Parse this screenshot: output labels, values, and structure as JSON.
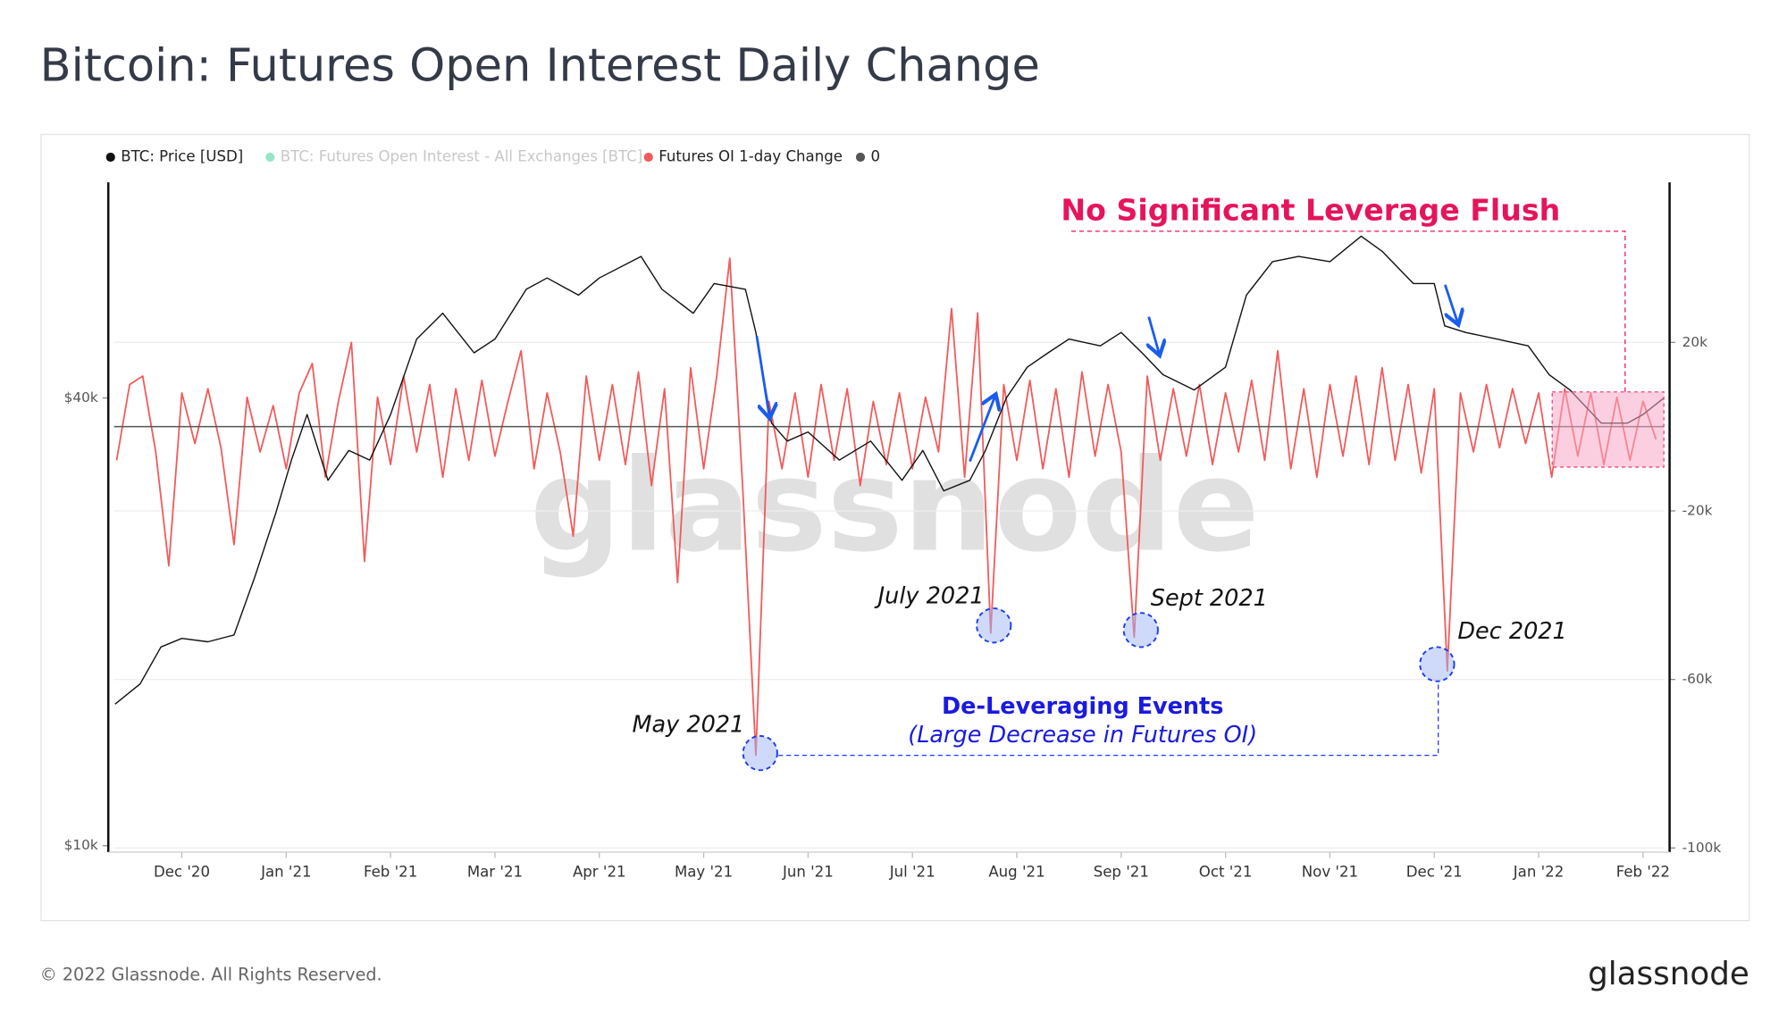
{
  "chart_data": {
    "type": "line",
    "title": "Bitcoin: Futures Open Interest Daily Change",
    "watermark": "glassnode",
    "copyright": "© 2022 Glassnode. All Rights Reserved.",
    "logo": "glassnode",
    "annotations": [
      "No Significant Leverage Flush",
      "De-Leveraging Events",
      "(Large Decrease in Futures OI)",
      "May 2021",
      "July 2021",
      "Sept 2021",
      "Dec 2021"
    ],
    "xlim": [
      -0.65,
      14.2
    ],
    "xticks": [
      {
        "value": 0,
        "label": "Dec '20"
      },
      {
        "value": 1,
        "label": "Jan '21"
      },
      {
        "value": 2,
        "label": "Feb '21"
      },
      {
        "value": 3,
        "label": "Mar '21"
      },
      {
        "value": 4,
        "label": "Apr '21"
      },
      {
        "value": 5,
        "label": "May '21"
      },
      {
        "value": 6,
        "label": "Jun '21"
      },
      {
        "value": 7,
        "label": "Jul '21"
      },
      {
        "value": 8,
        "label": "Aug '21"
      },
      {
        "value": 9,
        "label": "Sep '21"
      },
      {
        "value": 10,
        "label": "Oct '21"
      },
      {
        "value": 11,
        "label": "Nov '21"
      },
      {
        "value": 12,
        "label": "Dec '21"
      },
      {
        "value": 13,
        "label": "Jan '22"
      },
      {
        "value": 14,
        "label": "Feb '22"
      }
    ],
    "ylim": [
      9800,
      78000
    ],
    "ylog": true,
    "yticks": [
      {
        "value": 10000,
        "label": "$10k"
      },
      {
        "value": 40000,
        "label": "$40k"
      }
    ],
    "y2lim": [
      -101000,
      58000
    ],
    "y2ticks": [
      {
        "value": 20000,
        "label": "20k"
      },
      {
        "value": -20000,
        "label": "-20k"
      },
      {
        "value": -60000,
        "label": "-60k"
      },
      {
        "value": -100000,
        "label": "-100k"
      }
    ],
    "grid": true,
    "series": [
      {
        "name": "BTC: Price [USD]",
        "color": "#111111",
        "x": [
          -0.64,
          -0.4,
          -0.2,
          0,
          0.25,
          0.5,
          0.7,
          0.9,
          1.05,
          1.2,
          1.4,
          1.6,
          1.8,
          2.0,
          2.25,
          2.5,
          2.8,
          3.0,
          3.3,
          3.5,
          3.8,
          4.0,
          4.4,
          4.6,
          4.9,
          5.1,
          5.4,
          5.5,
          5.65,
          5.8,
          6.0,
          6.3,
          6.6,
          6.9,
          7.1,
          7.3,
          7.55,
          7.7,
          7.9,
          8.1,
          8.3,
          8.5,
          8.8,
          9.0,
          9.2,
          9.4,
          9.7,
          10.0,
          10.2,
          10.45,
          10.7,
          11.0,
          11.3,
          11.5,
          11.8,
          12.0,
          12.1,
          12.3,
          12.6,
          12.9,
          13.1,
          13.3,
          13.6,
          13.85,
          14.0,
          14.2
        ],
        "values": [
          15500,
          16500,
          18500,
          19000,
          18800,
          19200,
          23000,
          28000,
          33000,
          38000,
          31000,
          34000,
          33000,
          38000,
          48000,
          52000,
          46000,
          48000,
          56000,
          58000,
          55000,
          58000,
          62000,
          56000,
          52000,
          57000,
          56000,
          49000,
          37000,
          35000,
          36000,
          33000,
          35000,
          31000,
          34000,
          30000,
          31000,
          34000,
          40000,
          44000,
          46000,
          48000,
          47000,
          49000,
          46000,
          43000,
          41000,
          44000,
          55000,
          61000,
          62000,
          61000,
          66000,
          63000,
          57000,
          57000,
          50000,
          49000,
          48000,
          47000,
          43000,
          41000,
          37000,
          37000,
          38000,
          40000
        ]
      },
      {
        "name": "BTC: Futures Open Interest - All Exchanges [BTC]",
        "color": "#2ecc8f",
        "hidden": true
      },
      {
        "name": "Futures OI 1-day Change",
        "color": "#f25a5a",
        "axis": "y2",
        "x": [
          -0.625,
          -0.5,
          -0.375,
          -0.25,
          -0.125,
          0,
          0.125,
          0.25,
          0.375,
          0.5,
          0.625,
          0.75,
          0.875,
          1,
          1.125,
          1.25,
          1.375,
          1.5,
          1.625,
          1.75,
          1.875,
          2,
          2.125,
          2.25,
          2.375,
          2.5,
          2.625,
          2.75,
          2.875,
          3,
          3.125,
          3.25,
          3.375,
          3.5,
          3.625,
          3.75,
          3.875,
          4,
          4.125,
          4.25,
          4.375,
          4.5,
          4.625,
          4.75,
          4.875,
          5,
          5.125,
          5.25,
          5.375,
          5.5,
          5.625,
          5.75,
          5.875,
          6,
          6.125,
          6.25,
          6.375,
          6.5,
          6.625,
          6.75,
          6.875,
          7,
          7.125,
          7.25,
          7.375,
          7.5,
          7.625,
          7.75,
          7.875,
          8,
          8.125,
          8.25,
          8.375,
          8.5,
          8.625,
          8.75,
          8.875,
          9,
          9.125,
          9.25,
          9.375,
          9.5,
          9.625,
          9.75,
          9.875,
          10,
          10.125,
          10.25,
          10.375,
          10.5,
          10.625,
          10.75,
          10.875,
          11,
          11.125,
          11.25,
          11.375,
          11.5,
          11.625,
          11.75,
          11.875,
          12,
          12.125,
          12.25,
          12.375,
          12.5,
          12.625,
          12.75,
          12.875,
          13,
          13.125,
          13.25,
          13.375,
          13.5,
          13.625,
          13.75,
          13.875,
          14,
          14.125
        ],
        "values": [
          -8000,
          10000,
          12000,
          -6000,
          -33000,
          8000,
          -4000,
          9000,
          -5000,
          -28000,
          7000,
          -6000,
          5000,
          -10000,
          8000,
          15000,
          -12000,
          6000,
          20000,
          -32000,
          7000,
          -9000,
          12000,
          -6000,
          10000,
          -12000,
          9000,
          -8000,
          11000,
          -7000,
          6000,
          18000,
          -10000,
          8000,
          -6000,
          -26000,
          12000,
          -8000,
          10000,
          -9000,
          13000,
          -14000,
          9000,
          -37000,
          14000,
          -10000,
          12000,
          40000,
          -15000,
          -78000,
          6000,
          -10000,
          8000,
          -12000,
          10000,
          -8000,
          9000,
          -14000,
          6000,
          -9000,
          8000,
          -10000,
          7000,
          -6000,
          28000,
          -12000,
          27000,
          -49000,
          10000,
          -8000,
          11000,
          -10000,
          9000,
          -12000,
          13000,
          -7000,
          10000,
          -6000,
          -50000,
          12000,
          -8000,
          9000,
          -7000,
          10000,
          -9000,
          8000,
          -6000,
          11000,
          -8000,
          18000,
          -10000,
          9000,
          -12000,
          10000,
          -7000,
          12000,
          -9000,
          14000,
          -8000,
          10000,
          -11000,
          9000,
          -58000,
          8000,
          -6000,
          10000,
          -5000,
          9000,
          -4000,
          8000,
          -12000,
          9000,
          -7000,
          8000,
          -9000,
          7000,
          -8000,
          6000,
          -3000
        ]
      },
      {
        "name": "0",
        "color": "#555555",
        "axis": "y2",
        "value": 0
      }
    ]
  }
}
